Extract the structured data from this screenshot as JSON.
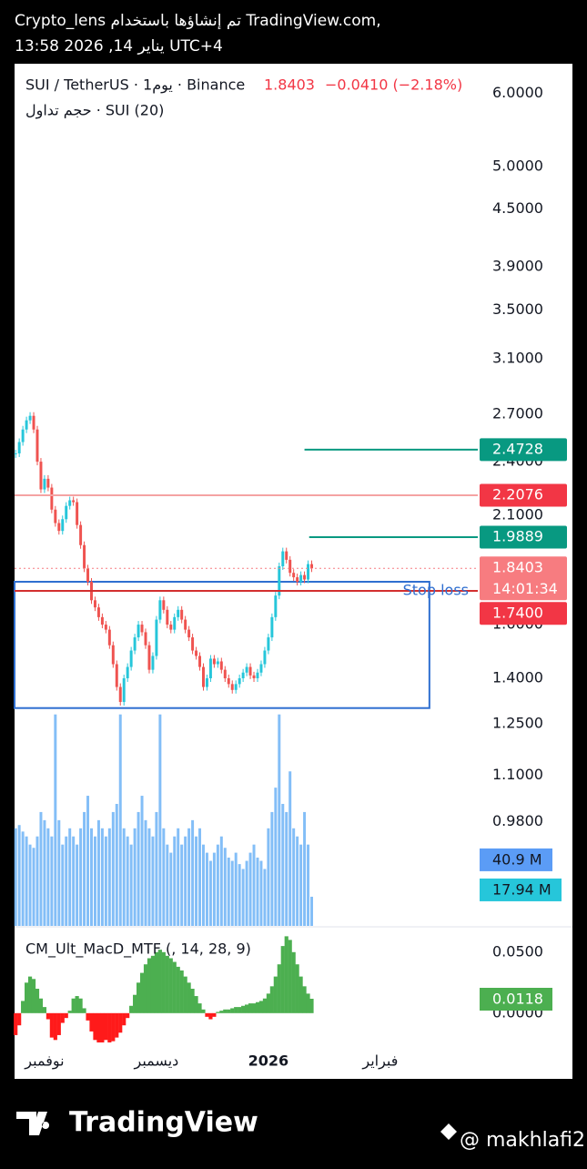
{
  "header": {
    "line1": "Crypto_lens تم إنشاؤها باستخدام TradingView.com,",
    "line2": "13:58 2026 ,14 يناير UTC+4"
  },
  "footer": {
    "brand": "TradingView",
    "handle": "@ makhlafi2"
  },
  "chart_data": {
    "type": "candlestick",
    "legend": {
      "symbol": "SUI / TetherUS · 1يوم · Binance",
      "price": "1.8403",
      "change": "−0.0410 (−2.18%)",
      "volume_title": "حجم تداول · SUI (20)"
    },
    "up_color": "#26c6da",
    "down_color": "#ef5350",
    "log_scale": true,
    "x": [
      0,
      1,
      2,
      3,
      4,
      5,
      6,
      7,
      8,
      9,
      10,
      11,
      12,
      13,
      14,
      15,
      16,
      17,
      18,
      19,
      20,
      21,
      22,
      23,
      24,
      25,
      26,
      27,
      28,
      29,
      30,
      31,
      32,
      33,
      34,
      35,
      36,
      37,
      38,
      39,
      40,
      41,
      42,
      43,
      44,
      45,
      46,
      47,
      48,
      49,
      50,
      51,
      52,
      53,
      54,
      55,
      56,
      57,
      58,
      59,
      60,
      61,
      62,
      63,
      64,
      65,
      66,
      67,
      68,
      69,
      70,
      71,
      72,
      73,
      74,
      75,
      76,
      77,
      78,
      79,
      80,
      81,
      82
    ],
    "values": [
      2.45,
      2.52,
      2.6,
      2.66,
      2.69,
      2.6,
      2.4,
      2.24,
      2.3,
      2.25,
      2.13,
      2.06,
      2.02,
      2.08,
      2.15,
      2.18,
      2.17,
      2.05,
      1.95,
      1.84,
      1.78,
      1.7,
      1.67,
      1.63,
      1.6,
      1.58,
      1.52,
      1.45,
      1.37,
      1.32,
      1.4,
      1.44,
      1.5,
      1.55,
      1.6,
      1.57,
      1.52,
      1.43,
      1.48,
      1.62,
      1.7,
      1.66,
      1.6,
      1.58,
      1.63,
      1.66,
      1.62,
      1.58,
      1.55,
      1.5,
      1.48,
      1.44,
      1.37,
      1.4,
      1.47,
      1.45,
      1.46,
      1.43,
      1.4,
      1.38,
      1.36,
      1.38,
      1.4,
      1.42,
      1.44,
      1.41,
      1.4,
      1.42,
      1.45,
      1.5,
      1.55,
      1.63,
      1.72,
      1.85,
      1.92,
      1.88,
      1.82,
      1.8,
      1.78,
      1.81,
      1.79,
      1.86,
      1.8403
    ],
    "xlim": [
      -0.3,
      128
    ],
    "xticks": [
      {
        "value": 8,
        "label": "نوفمبر"
      },
      {
        "value": 39,
        "label": "ديسمبر"
      },
      {
        "value": 70,
        "label": "2026"
      },
      {
        "value": 101,
        "label": "فبراير"
      }
    ],
    "ylim": [
      0.756,
      6.46
    ],
    "yticks": [
      {
        "value": 6,
        "label": "6.0000"
      },
      {
        "value": 5,
        "label": "5.0000"
      },
      {
        "value": 4.5,
        "label": "4.5000"
      },
      {
        "value": 3.9,
        "label": "3.9000"
      },
      {
        "value": 3.5,
        "label": "3.5000"
      },
      {
        "value": 3.1,
        "label": "3.1000"
      },
      {
        "value": 2.7,
        "label": "2.7000"
      },
      {
        "value": 2.4,
        "label": "2.4000"
      },
      {
        "value": 2.1,
        "label": "2.1000"
      },
      {
        "value": 1.6,
        "label": "1.6000"
      },
      {
        "value": 1.4,
        "label": "1.4000"
      },
      {
        "value": 1.25,
        "label": "1.2500"
      },
      {
        "value": 1.1,
        "label": "1.1000"
      },
      {
        "value": 0.98,
        "label": "0.9800"
      }
    ],
    "levels": [
      {
        "value": 2.4728,
        "label": "2.4728",
        "color": "#089981",
        "start": 80
      },
      {
        "value": 2.2076,
        "label": "2.2076",
        "color": "#f5a3a3",
        "box": "#f23645",
        "start": -0.3
      },
      {
        "value": 1.9889,
        "label": "1.9889",
        "color": "#089981",
        "start": 81.3
      },
      {
        "value": 1.8403,
        "label": "1.8403",
        "timer": "14:01:34",
        "color": "#f77c80",
        "box": "#f77c80",
        "start": -0.3,
        "dotted": true
      },
      {
        "value": 1.74,
        "label": "1.7400",
        "note": "Stop loss",
        "color": "#d32f2f",
        "box": "#f23645",
        "start": -0.3
      }
    ],
    "box": {
      "top": 1.78,
      "bottom": 1.3,
      "end": 114.6,
      "color": "#2f6fd0"
    },
    "volume": {
      "color": "#64aef5",
      "ylim": [
        0,
        530
      ],
      "ma": 40.9,
      "ma_label": "40.9 M",
      "last_label": "17.94 M",
      "values": [
        60,
        62,
        58,
        55,
        50,
        48,
        55,
        70,
        65,
        60,
        55,
        130,
        65,
        50,
        55,
        60,
        55,
        50,
        60,
        70,
        80,
        60,
        55,
        65,
        60,
        55,
        60,
        70,
        75,
        130,
        60,
        55,
        50,
        60,
        70,
        80,
        65,
        60,
        55,
        70,
        130,
        60,
        50,
        45,
        55,
        60,
        50,
        55,
        60,
        65,
        55,
        60,
        50,
        45,
        40,
        45,
        50,
        55,
        48,
        42,
        40,
        45,
        38,
        35,
        40,
        45,
        50,
        42,
        40,
        35,
        60,
        70,
        85,
        130,
        75,
        70,
        95,
        60,
        55,
        50,
        70,
        50,
        17.94
      ]
    },
    "macd": {
      "title": "CM_Ult_MacD_MTF (, 14, 28, 9)",
      "up_color": "#4caf50",
      "down_color": "#ff1a1a",
      "ylim": [
        -0.027,
        0.07
      ],
      "yticks": [
        {
          "value": 0.05,
          "label": "0.0500"
        },
        {
          "value": 0,
          "label": "0.0000"
        }
      ],
      "last_label": "0.0118",
      "values": [
        -0.018,
        -0.01,
        0.01,
        0.025,
        0.03,
        0.028,
        0.02,
        0.012,
        0.005,
        -0.005,
        -0.02,
        -0.022,
        -0.018,
        -0.008,
        -0.004,
        0.002,
        0.012,
        0.014,
        0.012,
        0.004,
        -0.006,
        -0.015,
        -0.022,
        -0.024,
        -0.024,
        -0.022,
        -0.024,
        -0.023,
        -0.02,
        -0.016,
        -0.01,
        -0.004,
        0.006,
        0.015,
        0.025,
        0.033,
        0.04,
        0.045,
        0.047,
        0.05,
        0.052,
        0.05,
        0.047,
        0.045,
        0.042,
        0.038,
        0.035,
        0.03,
        0.025,
        0.02,
        0.014,
        0.008,
        0.003,
        -0.003,
        -0.005,
        -0.003,
        0.001,
        0.002,
        0.003,
        0.003,
        0.004,
        0.005,
        0.005,
        0.006,
        0.007,
        0.008,
        0.008,
        0.009,
        0.01,
        0.012,
        0.016,
        0.022,
        0.03,
        0.04,
        0.055,
        0.063,
        0.06,
        0.05,
        0.04,
        0.03,
        0.022,
        0.016,
        0.0118
      ]
    }
  }
}
